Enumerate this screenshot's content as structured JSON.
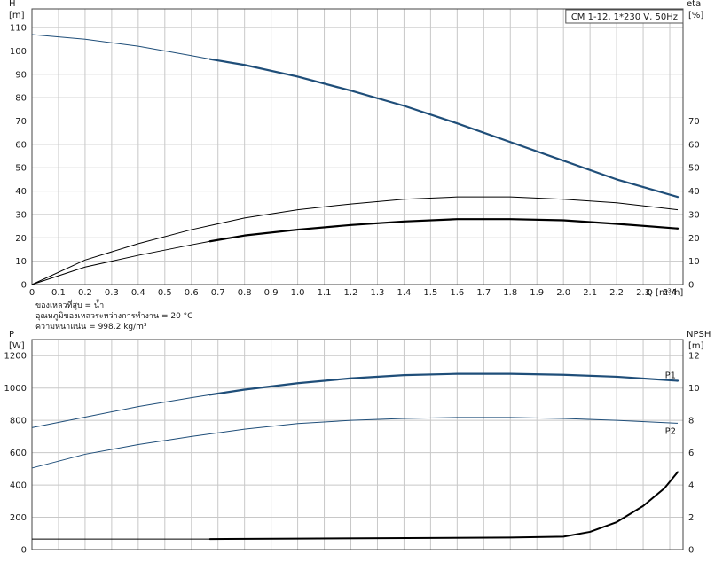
{
  "chart_data": [
    {
      "type": "line",
      "title": "CM 1-12, 1*230 V, 50Hz",
      "xlabel": "Q [m³/h]",
      "ylabel_left": [
        "H",
        "[m]"
      ],
      "ylabel_right": [
        "eta",
        "[%]"
      ],
      "xlim": [
        0,
        2.45
      ],
      "ylim_left": [
        0,
        118
      ],
      "ylim_right": [
        0,
        118
      ],
      "x_ticks": [
        "0",
        "0.1",
        "0.2",
        "0.3",
        "0.4",
        "0.5",
        "0.6",
        "0.7",
        "0.8",
        "0.9",
        "1.0",
        "1.1",
        "1.2",
        "1.3",
        "1.4",
        "1.5",
        "1.6",
        "1.7",
        "1.8",
        "1.9",
        "2.0",
        "2.1",
        "2.2",
        "2.3",
        "2.4"
      ],
      "y_ticks_left": [
        "0",
        "10",
        "20",
        "30",
        "40",
        "50",
        "60",
        "70",
        "80",
        "90",
        "100",
        "110"
      ],
      "y_ticks_right": [
        "0",
        "10",
        "20",
        "30",
        "40",
        "50",
        "60",
        "70"
      ],
      "grid": true,
      "series": [
        {
          "name": "",
          "axis": "left",
          "color": "#1f4e79",
          "width": 2.2,
          "x": [
            0,
            0.2,
            0.4,
            0.6,
            0.67,
            0.8,
            1.0,
            1.2,
            1.4,
            1.6,
            1.8,
            2.0,
            2.2,
            2.43
          ],
          "y": [
            107,
            105,
            102,
            98,
            96.5,
            94,
            89,
            83,
            76.5,
            69,
            61,
            53,
            45,
            37.5
          ],
          "thin_until": 0.67
        },
        {
          "name": "",
          "axis": "right",
          "color": "#000000",
          "width": 1.2,
          "x": [
            0,
            0.2,
            0.4,
            0.6,
            0.8,
            1.0,
            1.2,
            1.4,
            1.6,
            1.8,
            2.0,
            2.2,
            2.43
          ],
          "y": [
            0,
            10.5,
            17.5,
            23.5,
            28.5,
            32,
            34.5,
            36.5,
            37.5,
            37.5,
            36.5,
            35,
            32
          ],
          "thin_until": 0
        },
        {
          "name": "",
          "axis": "right",
          "color": "#000000",
          "width": 2.2,
          "x": [
            0,
            0.2,
            0.4,
            0.6,
            0.67,
            0.8,
            1.0,
            1.2,
            1.4,
            1.6,
            1.8,
            2.0,
            2.2,
            2.43
          ],
          "y": [
            0,
            7.5,
            12.5,
            17,
            18.5,
            21,
            23.5,
            25.5,
            27,
            28,
            28,
            27.5,
            26,
            24
          ],
          "thin_until": 0.67
        }
      ]
    },
    {
      "type": "line",
      "title": "",
      "ylabel_left": [
        "P",
        "[W]"
      ],
      "ylabel_right": [
        "NPSH",
        "[m]"
      ],
      "xlim": [
        0,
        2.45
      ],
      "ylim_left": [
        0,
        1300
      ],
      "ylim_right": [
        0,
        13
      ],
      "y_ticks_left": [
        "0",
        "200",
        "400",
        "600",
        "800",
        "1000",
        "1200"
      ],
      "y_ticks_right": [
        "0",
        "2",
        "4",
        "6",
        "8",
        "10",
        "12"
      ],
      "grid": true,
      "series": [
        {
          "name": "P1",
          "axis": "left",
          "color": "#1f4e79",
          "width": 2.2,
          "x": [
            0,
            0.2,
            0.4,
            0.6,
            0.67,
            0.8,
            1.0,
            1.2,
            1.4,
            1.6,
            1.8,
            2.0,
            2.2,
            2.43
          ],
          "y": [
            755,
            820,
            885,
            940,
            958,
            990,
            1030,
            1060,
            1080,
            1088,
            1088,
            1082,
            1070,
            1045
          ],
          "thin_until": 0.67
        },
        {
          "name": "P2",
          "axis": "left",
          "color": "#1f4e79",
          "width": 1.0,
          "x": [
            0,
            0.2,
            0.4,
            0.6,
            0.8,
            1.0,
            1.2,
            1.4,
            1.6,
            1.8,
            2.0,
            2.2,
            2.43
          ],
          "y": [
            505,
            590,
            650,
            700,
            745,
            780,
            800,
            812,
            818,
            818,
            812,
            800,
            782
          ],
          "thin_until": 0
        },
        {
          "name": "",
          "axis": "right",
          "color": "#000000",
          "width": 2.0,
          "x": [
            0,
            0.67,
            1.0,
            1.5,
            1.8,
            2.0,
            2.1,
            2.2,
            2.3,
            2.38,
            2.43
          ],
          "y": [
            0.65,
            0.65,
            0.68,
            0.72,
            0.75,
            0.8,
            1.1,
            1.7,
            2.7,
            3.8,
            4.8
          ],
          "thin_until": 0.67
        }
      ]
    }
  ],
  "notes": [
    "ของเหลวที่สูบ = น้ำ",
    "อุณหภูมิของเหลวระหว่างการทำงาน = 20 °C",
    "ความหนาแน่น = 998.2 kg/m³"
  ]
}
